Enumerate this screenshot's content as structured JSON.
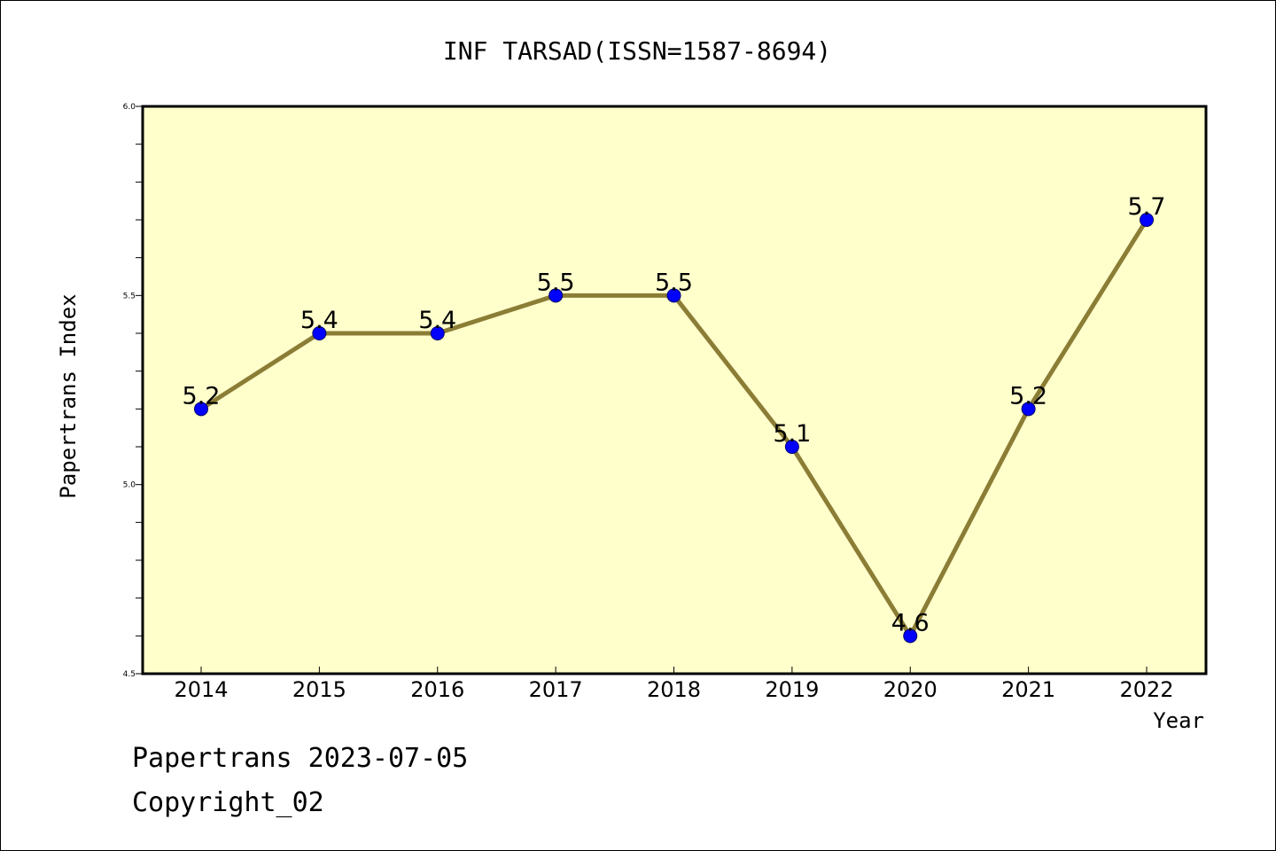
{
  "chart_data": {
    "type": "line",
    "title": "INF TARSAD(ISSN=1587-8694)",
    "xlabel": "Year",
    "ylabel": "Papertrans Index",
    "x": [
      "2014",
      "2015",
      "2016",
      "2017",
      "2018",
      "2019",
      "2020",
      "2021",
      "2022"
    ],
    "series": [
      {
        "values": [
          5.2,
          5.4,
          5.4,
          5.5,
          5.5,
          5.1,
          4.6,
          5.2,
          5.7
        ],
        "labels": [
          "5.2",
          "5.4",
          "5.4",
          "5.5",
          "5.5",
          "5.1",
          "4.6",
          "5.2",
          "5.7"
        ]
      }
    ],
    "ylim": [
      4.5,
      6.0
    ],
    "yticks": [
      "4.5",
      "5.0",
      "5.5",
      "6.0"
    ],
    "grid": false,
    "legend": "none",
    "colors": {
      "plot_background": "#ffffcc",
      "line": "#8b7d35",
      "marker": "#0000ff"
    }
  },
  "footer": {
    "line1": "Papertrans 2023-07-05",
    "line2": "Copyright_02"
  }
}
